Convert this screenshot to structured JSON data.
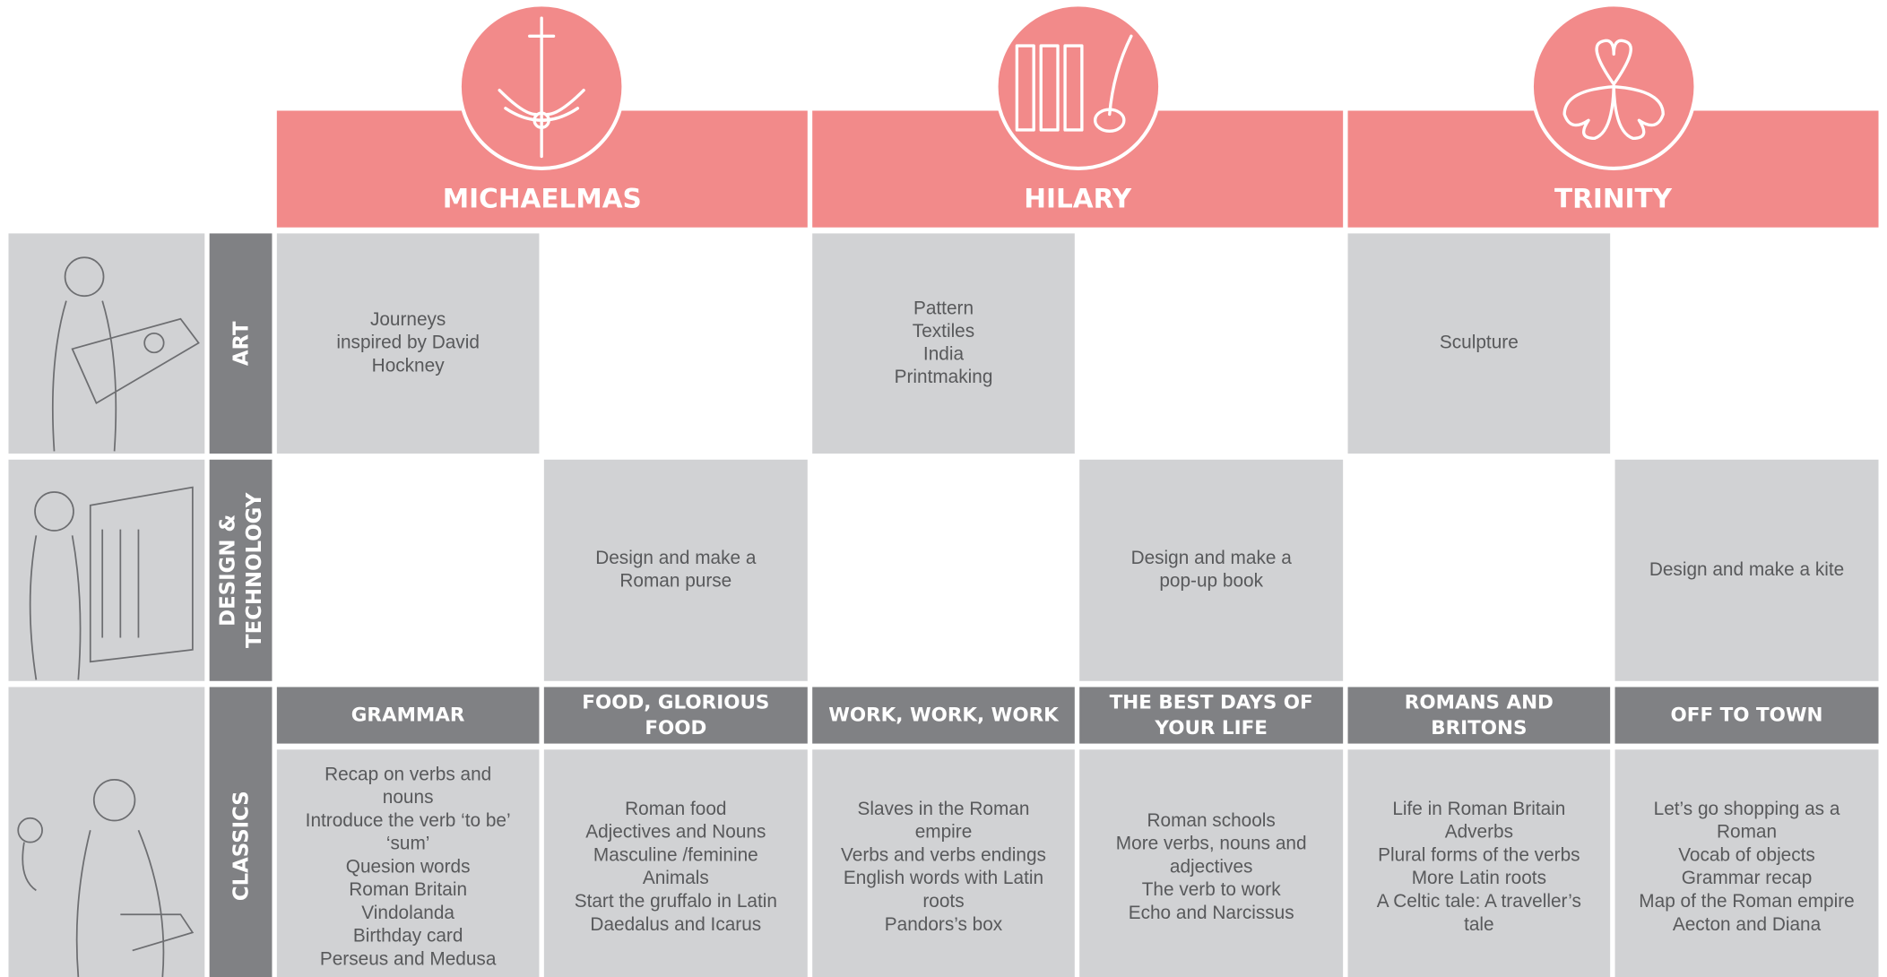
{
  "terms": [
    {
      "name": "MICHAELMAS"
    },
    {
      "name": "HILARY"
    },
    {
      "name": "TRINITY"
    }
  ],
  "rows": [
    {
      "subject": [
        "ART"
      ],
      "cells": [
        [
          "Journeys",
          "inspired by David",
          "Hockney"
        ],
        null,
        [
          "Pattern",
          "Textiles",
          "India",
          "Printmaking"
        ],
        null,
        [
          "Sculpture"
        ],
        null
      ]
    },
    {
      "subject": [
        "DESIGN &",
        "TECHNOLOGY"
      ],
      "cells": [
        null,
        [
          "Design and make a",
          "Roman purse"
        ],
        null,
        [
          "Design and make a",
          "pop-up book"
        ],
        null,
        [
          "Design and make a kite"
        ]
      ]
    }
  ],
  "classics": {
    "subject": [
      "CLASSICS"
    ],
    "topics": [
      {
        "title": [
          "GRAMMAR"
        ],
        "content": [
          "Recap on verbs and",
          "nouns",
          "Introduce the verb ‘to be’",
          "‘sum’",
          "Quesion words",
          "Roman Britain",
          "Vindolanda",
          "Birthday card",
          "Perseus and Medusa"
        ]
      },
      {
        "title": [
          "FOOD, GLORIOUS",
          "FOOD"
        ],
        "content": [
          "Roman food",
          "Adjectives and Nouns",
          "Masculine /feminine",
          "Animals",
          "Start the gruffalo in Latin",
          "Daedalus and Icarus"
        ]
      },
      {
        "title": [
          "WORK, WORK, WORK"
        ],
        "content": [
          "Slaves in the Roman",
          "empire",
          "Verbs and verbs endings",
          "English words with Latin",
          "roots",
          "Pandors’s box"
        ]
      },
      {
        "title": [
          "THE BEST DAYS OF",
          "YOUR LIFE"
        ],
        "content": [
          "Roman schools",
          "More verbs, nouns and",
          "adjectives",
          "The verb to work",
          "Echo and Narcissus"
        ]
      },
      {
        "title": [
          "ROMANS AND",
          "BRITONS"
        ],
        "content": [
          "Life in Roman Britain",
          "Adverbs",
          "Plural forms of the verbs",
          "More Latin roots",
          "A Celtic tale: A traveller’s",
          "tale"
        ]
      },
      {
        "title": [
          "OFF TO TOWN"
        ],
        "content": [
          "Let’s go shopping as a",
          "Roman",
          "Vocab of objects",
          "Grammar recap",
          "Map of the Roman empire",
          "Aecton and Diana"
        ]
      }
    ]
  }
}
